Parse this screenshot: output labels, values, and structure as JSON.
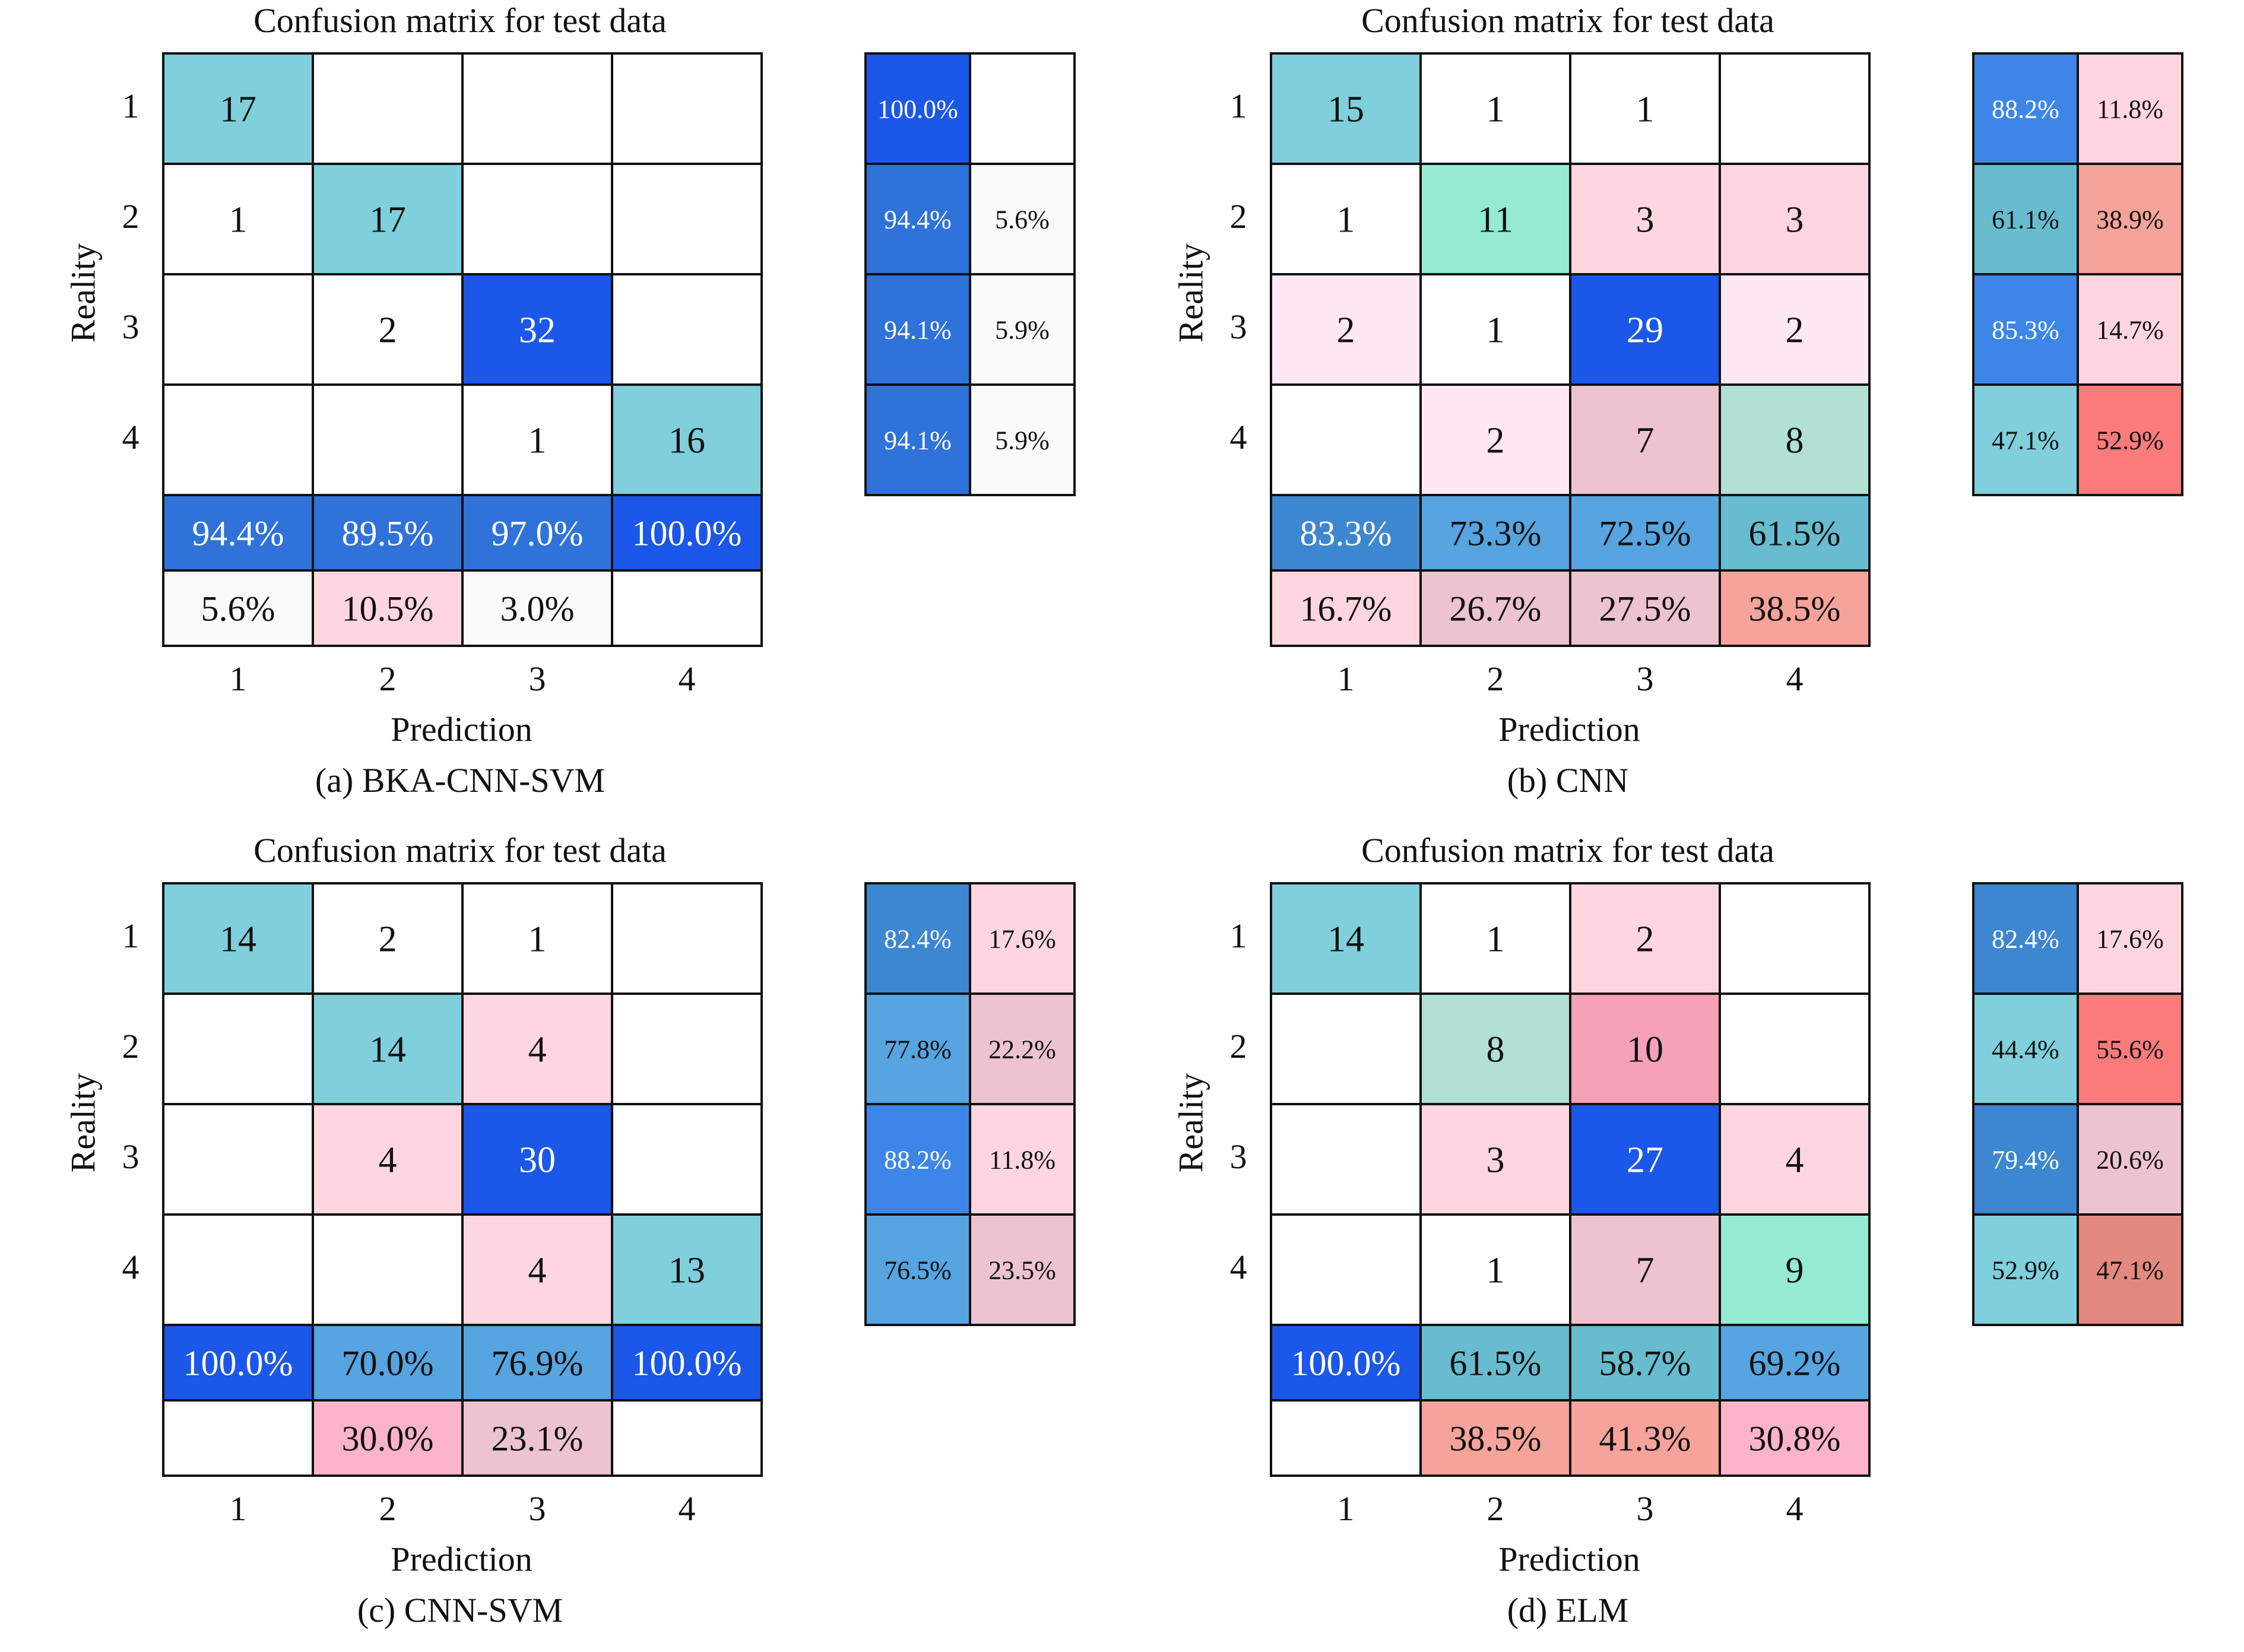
{
  "chart_data": [
    {
      "type": "heatmap",
      "title": "Confusion matrix for test data",
      "caption": "(a) BKA-CNN-SVM",
      "xlabel": "Prediction",
      "ylabel": "Reality",
      "classes": [
        "1",
        "2",
        "3",
        "4"
      ],
      "matrix": [
        [
          17,
          null,
          null,
          null
        ],
        [
          1,
          17,
          null,
          null
        ],
        [
          null,
          2,
          32,
          null
        ],
        [
          null,
          null,
          1,
          16
        ]
      ],
      "matrix_colors": [
        [
          "#7fcfdc",
          "#ffffff",
          "#ffffff",
          "#ffffff"
        ],
        [
          "#ffffff",
          "#7fcfdc",
          "#ffffff",
          "#ffffff"
        ],
        [
          "#ffffff",
          "#ffffff",
          "#1b57e8",
          "#ffffff"
        ],
        [
          "#ffffff",
          "#ffffff",
          "#ffffff",
          "#7fcfdc"
        ]
      ],
      "col_correct": [
        "94.4%",
        "89.5%",
        "97.0%",
        "100.0%"
      ],
      "col_correct_colors": [
        "#2f72d9",
        "#2f72d9",
        "#2f72d9",
        "#1b57e8"
      ],
      "col_error": [
        "5.6%",
        "10.5%",
        "3.0%",
        ""
      ],
      "col_error_colors": [
        "#fafafa",
        "#ffd6e0",
        "#fafafa",
        "#ffffff"
      ],
      "row_correct": [
        "100.0%",
        "94.4%",
        "94.1%",
        "94.1%"
      ],
      "row_correct_colors": [
        "#1b57e8",
        "#2f72d9",
        "#2f72d9",
        "#2f72d9"
      ],
      "row_error": [
        "",
        "5.6%",
        "5.9%",
        "5.9%"
      ],
      "row_error_colors": [
        "#ffffff",
        "#fafafa",
        "#fafafa",
        "#fafafa"
      ]
    },
    {
      "type": "heatmap",
      "title": "Confusion matrix for test data",
      "caption": "(b) CNN",
      "xlabel": "Prediction",
      "ylabel": "Reality",
      "classes": [
        "1",
        "2",
        "3",
        "4"
      ],
      "matrix": [
        [
          15,
          1,
          1,
          null
        ],
        [
          1,
          11,
          3,
          3
        ],
        [
          2,
          1,
          29,
          2
        ],
        [
          null,
          2,
          7,
          8
        ]
      ],
      "matrix_colors": [
        [
          "#7fcfdc",
          "#ffffff",
          "#ffffff",
          "#ffffff"
        ],
        [
          "#ffffff",
          "#95ebd2",
          "#ffd6e0",
          "#ffd6e0"
        ],
        [
          "#ffe8f4",
          "#ffffff",
          "#1b57e8",
          "#ffe8f4"
        ],
        [
          "#ffffff",
          "#ffe8f4",
          "#ecc3cf",
          "#b2e0d2"
        ]
      ],
      "col_correct": [
        "83.3%",
        "73.3%",
        "72.5%",
        "61.5%"
      ],
      "col_correct_colors": [
        "#3d86d0",
        "#56a4e0",
        "#56a4e0",
        "#67bccf"
      ],
      "col_error": [
        "16.7%",
        "26.7%",
        "27.5%",
        "38.5%"
      ],
      "col_error_colors": [
        "#ffd6e0",
        "#ecc3cf",
        "#ecc3cf",
        "#f5a39b"
      ],
      "row_correct": [
        "88.2%",
        "61.1%",
        "85.3%",
        "47.1%"
      ],
      "row_correct_colors": [
        "#3d86e8",
        "#67bccf",
        "#3d86e8",
        "#7fcfdc"
      ],
      "row_error": [
        "11.8%",
        "38.9%",
        "14.7%",
        "52.9%"
      ],
      "row_error_colors": [
        "#ffd6e0",
        "#f5a39b",
        "#ffd6e0",
        "#fb7b7b"
      ]
    },
    {
      "type": "heatmap",
      "title": "Confusion matrix for test data",
      "caption": "(c) CNN-SVM",
      "xlabel": "Prediction",
      "ylabel": "Reality",
      "classes": [
        "1",
        "2",
        "3",
        "4"
      ],
      "matrix": [
        [
          14,
          2,
          1,
          null
        ],
        [
          null,
          14,
          4,
          null
        ],
        [
          null,
          4,
          30,
          null
        ],
        [
          null,
          null,
          4,
          13
        ]
      ],
      "matrix_colors": [
        [
          "#7fcfdc",
          "#ffffff",
          "#ffffff",
          "#ffffff"
        ],
        [
          "#ffffff",
          "#7fcfdc",
          "#ffd6e0",
          "#ffffff"
        ],
        [
          "#ffffff",
          "#ffd6e0",
          "#1b57e8",
          "#ffffff"
        ],
        [
          "#ffffff",
          "#ffffff",
          "#ffd6e0",
          "#7fcfdc"
        ]
      ],
      "col_correct": [
        "100.0%",
        "70.0%",
        "76.9%",
        "100.0%"
      ],
      "col_correct_colors": [
        "#1b57e8",
        "#56a4e0",
        "#56a4e0",
        "#1b57e8"
      ],
      "col_error": [
        "",
        "30.0%",
        "23.1%",
        ""
      ],
      "col_error_colors": [
        "#ffffff",
        "#fbb3ca",
        "#ecc3cf",
        "#ffffff"
      ],
      "row_correct": [
        "82.4%",
        "77.8%",
        "88.2%",
        "76.5%"
      ],
      "row_correct_colors": [
        "#3d86d0",
        "#56a4e0",
        "#3d86e8",
        "#56a4e0"
      ],
      "row_error": [
        "17.6%",
        "22.2%",
        "11.8%",
        "23.5%"
      ],
      "row_error_colors": [
        "#ffd6e0",
        "#ecc3cf",
        "#ffd6e0",
        "#ecc3cf"
      ]
    },
    {
      "type": "heatmap",
      "title": "Confusion matrix for test data",
      "caption": "(d) ELM",
      "xlabel": "Prediction",
      "ylabel": "Reality",
      "classes": [
        "1",
        "2",
        "3",
        "4"
      ],
      "matrix": [
        [
          14,
          1,
          2,
          null
        ],
        [
          null,
          8,
          10,
          null
        ],
        [
          null,
          3,
          27,
          4
        ],
        [
          null,
          1,
          7,
          9
        ]
      ],
      "matrix_colors": [
        [
          "#7fcfdc",
          "#ffffff",
          "#ffd6e0",
          "#ffffff"
        ],
        [
          "#ffffff",
          "#b2e0d2",
          "#f7a1b8",
          "#ffffff"
        ],
        [
          "#ffffff",
          "#ffd6e0",
          "#1b57e8",
          "#ffd6e0"
        ],
        [
          "#ffffff",
          "#ffffff",
          "#ecc3cf",
          "#95ebd2"
        ]
      ],
      "col_correct": [
        "100.0%",
        "61.5%",
        "58.7%",
        "69.2%"
      ],
      "col_correct_colors": [
        "#1b57e8",
        "#67bccf",
        "#67bccf",
        "#56a4e0"
      ],
      "col_error": [
        "",
        "38.5%",
        "41.3%",
        "30.8%"
      ],
      "col_error_colors": [
        "#ffffff",
        "#f5a39b",
        "#f5a39b",
        "#fbb3ca"
      ],
      "row_correct": [
        "82.4%",
        "44.4%",
        "79.4%",
        "52.9%"
      ],
      "row_correct_colors": [
        "#3d86d0",
        "#7fcfdc",
        "#3d86d0",
        "#7fcfdc"
      ],
      "row_error": [
        "17.6%",
        "55.6%",
        "20.6%",
        "47.1%"
      ],
      "row_error_colors": [
        "#ffd6e0",
        "#fb7b7b",
        "#ecc3cf",
        "#e38a80"
      ]
    }
  ]
}
